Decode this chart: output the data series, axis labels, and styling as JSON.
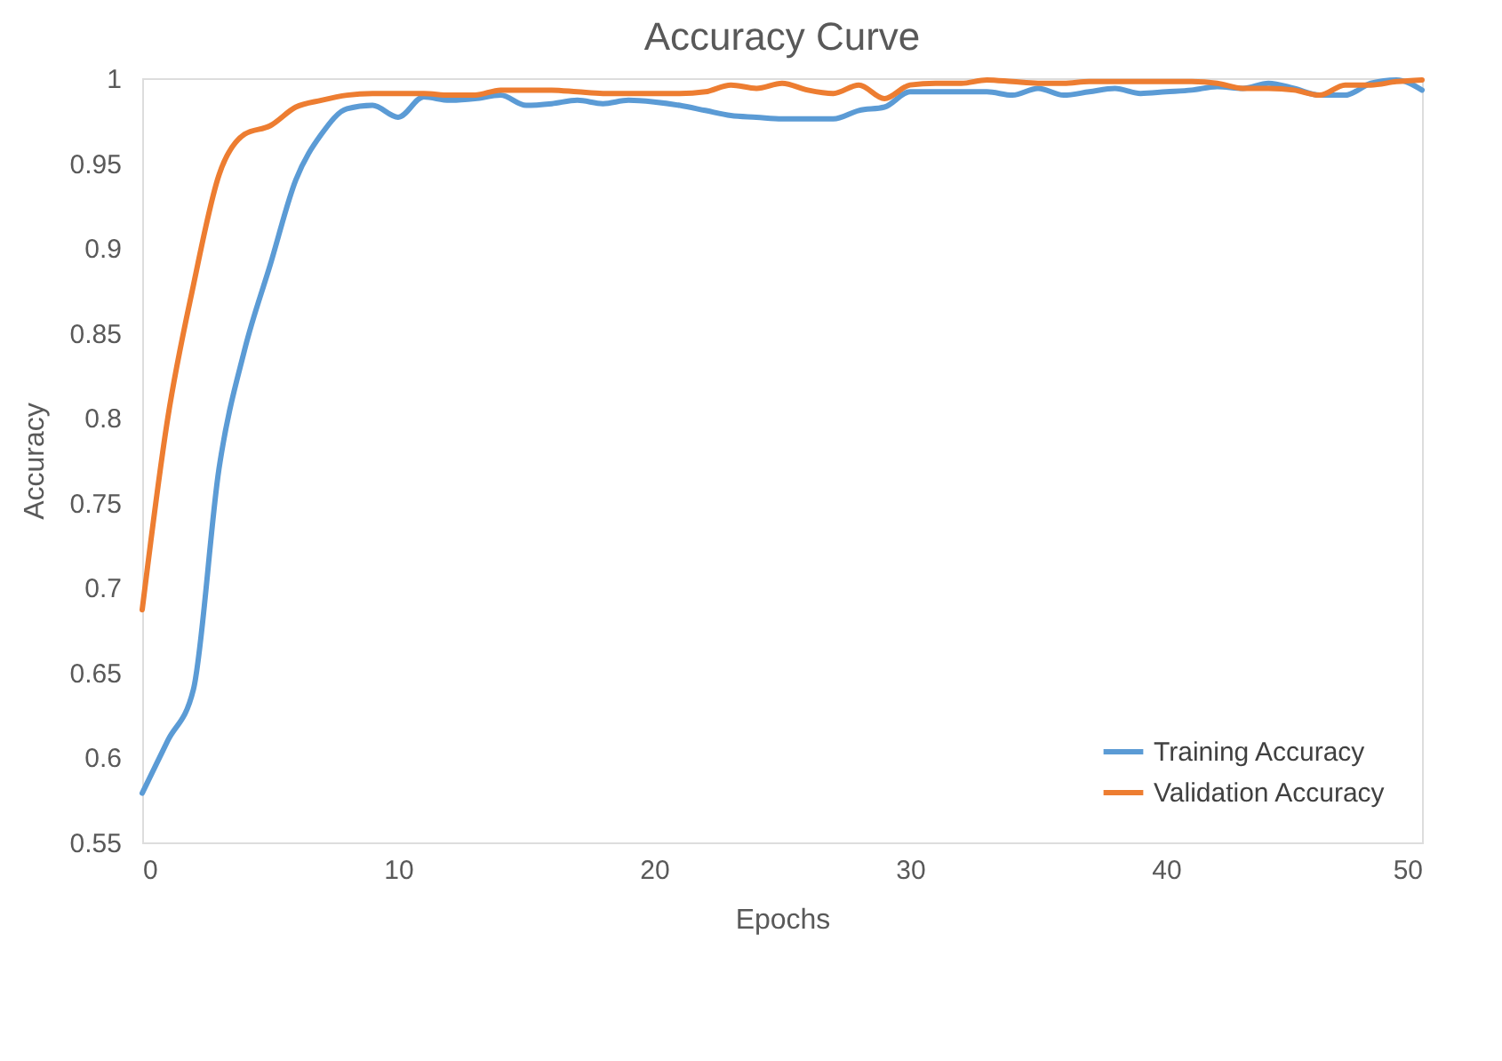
{
  "chart_data": {
    "type": "line",
    "title": "Accuracy Curve",
    "xlabel": "Epochs",
    "ylabel": "Accuracy",
    "x": [
      0,
      1,
      2,
      3,
      4,
      5,
      6,
      7,
      8,
      9,
      10,
      11,
      12,
      13,
      14,
      15,
      16,
      17,
      18,
      19,
      20,
      21,
      22,
      23,
      24,
      25,
      26,
      27,
      28,
      29,
      30,
      31,
      32,
      33,
      34,
      35,
      36,
      37,
      38,
      39,
      40,
      41,
      42,
      43,
      44,
      45,
      46,
      47,
      48,
      49,
      50
    ],
    "series": [
      {
        "name": "Training Accuracy",
        "color": "#5b9bd5",
        "values": [
          0.579,
          0.61,
          0.64,
          0.77,
          0.84,
          0.89,
          0.94,
          0.967,
          0.982,
          0.984,
          0.977,
          0.989,
          0.987,
          0.988,
          0.99,
          0.984,
          0.985,
          0.987,
          0.985,
          0.987,
          0.986,
          0.984,
          0.981,
          0.978,
          0.977,
          0.976,
          0.976,
          0.976,
          0.981,
          0.983,
          0.992,
          0.992,
          0.992,
          0.992,
          0.99,
          0.994,
          0.99,
          0.992,
          0.994,
          0.991,
          0.992,
          0.993,
          0.995,
          0.994,
          0.997,
          0.994,
          0.99,
          0.99,
          0.997,
          0.999,
          0.993
        ]
      },
      {
        "name": "Validation Accuracy",
        "color": "#ed7d31",
        "values": [
          0.687,
          0.8,
          0.878,
          0.943,
          0.967,
          0.972,
          0.983,
          0.987,
          0.99,
          0.991,
          0.991,
          0.991,
          0.99,
          0.99,
          0.993,
          0.993,
          0.993,
          0.992,
          0.991,
          0.991,
          0.991,
          0.991,
          0.992,
          0.996,
          0.994,
          0.997,
          0.993,
          0.991,
          0.996,
          0.988,
          0.996,
          0.997,
          0.997,
          0.999,
          0.998,
          0.997,
          0.997,
          0.998,
          0.998,
          0.998,
          0.998,
          0.998,
          0.997,
          0.994,
          0.994,
          0.993,
          0.99,
          0.996,
          0.996,
          0.998,
          0.999
        ]
      }
    ],
    "xlim": [
      0,
      50
    ],
    "xticks": [
      0,
      10,
      20,
      30,
      40,
      50
    ],
    "ylim": [
      0.55,
      1
    ],
    "yticks": [
      0.55,
      0.6,
      0.65,
      0.7,
      0.75,
      0.8,
      0.85,
      0.9,
      0.95,
      1
    ],
    "grid": false,
    "legend": "bottom right",
    "marker": "none",
    "line_style": "solid"
  }
}
